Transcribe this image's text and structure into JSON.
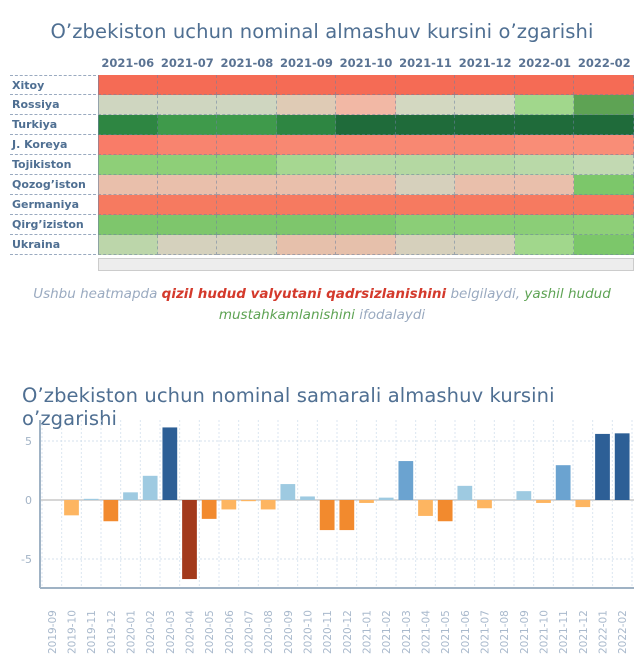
{
  "chart_data": [
    {
      "type": "heatmap",
      "title": "O’zbekiston uchun nominal almashuv kursini o’zgarishi",
      "columns": [
        "2021-06",
        "2021-07",
        "2021-08",
        "2021-09",
        "2021-10",
        "2021-11",
        "2021-12",
        "2022-01",
        "2022-02"
      ],
      "rows": [
        {
          "label": "Xitoy",
          "colors": [
            "#f56b55",
            "#f56b55",
            "#f56b55",
            "#f56b55",
            "#f56b55",
            "#f56b55",
            "#f56b55",
            "#f56b55",
            "#f56b55"
          ]
        },
        {
          "label": "Rossiya",
          "colors": [
            "#cfd6c0",
            "#cfd6c0",
            "#cfd6c0",
            "#dfcbb5",
            "#f2b8a5",
            "#d3d8c1",
            "#d3d8c1",
            "#a1d78c",
            "#5ea354"
          ]
        },
        {
          "label": "Turkiya",
          "colors": [
            "#2e8642",
            "#3f9a4b",
            "#3f9a4b",
            "#2e8642",
            "#1f6b3a",
            "#1f6b3a",
            "#1f6b3a",
            "#1f6b3a",
            "#1f6b3a"
          ]
        },
        {
          "label": "J. Koreya",
          "colors": [
            "#f97c68",
            "#f8846f",
            "#f8846f",
            "#f88872",
            "#f88872",
            "#f88872",
            "#f88872",
            "#f98d77",
            "#f98d77"
          ]
        },
        {
          "label": "Tojikiston",
          "colors": [
            "#8ecf78",
            "#8ecf78",
            "#8ecf78",
            "#a6d791",
            "#b4d8a2",
            "#b4d8a2",
            "#b4d8a2",
            "#b9d9a8",
            "#c2d9b2"
          ]
        },
        {
          "label": "Qozog’iston",
          "colors": [
            "#e9bfab",
            "#e9bfab",
            "#e9bfab",
            "#e9bfab",
            "#e9bfab",
            "#d6d0bc",
            "#e9bfab",
            "#e9bfab",
            "#7cc76a"
          ]
        },
        {
          "label": "Germaniya",
          "colors": [
            "#f67a60",
            "#f67a60",
            "#f67a60",
            "#f67a60",
            "#f67a60",
            "#f67a60",
            "#f67a60",
            "#f67a60",
            "#f67a60"
          ]
        },
        {
          "label": "Qirg’iziston",
          "colors": [
            "#7ec66c",
            "#7ec66c",
            "#7ec66c",
            "#7ec66c",
            "#80c86e",
            "#8bce77",
            "#8bce77",
            "#8bce77",
            "#8ecf78"
          ]
        },
        {
          "label": "Ukraina",
          "colors": [
            "#bcd6aa",
            "#d5d1bd",
            "#d5d1bd",
            "#e6c0ab",
            "#e6c0ab",
            "#d6d0bc",
            "#d6d0bc",
            "#a1d78c",
            "#7cc76a"
          ]
        }
      ]
    },
    {
      "type": "bar",
      "title": "O’zbekiston uchun nominal samarali almashuv kursini o’zgarishi",
      "xlabel": "",
      "ylabel": "",
      "ylim": [
        -7.5,
        7.2
      ],
      "yticks": [
        5,
        0,
        -5
      ],
      "ytick_labels": [
        "5",
        "0",
        "-5"
      ],
      "grid": true,
      "categories": [
        "2019-09",
        "2019-10",
        "2019-11",
        "2019-12",
        "2020-01",
        "2020-02",
        "2020-03",
        "2020-04",
        "2020-05",
        "2020-06",
        "2020-07",
        "2020-08",
        "2020-09",
        "2020-10",
        "2020-11",
        "2020-12",
        "2021-01",
        "2021-02",
        "2021-03",
        "2021-04",
        "2021-05",
        "2021-06",
        "2021-07",
        "2021-08",
        "2021-09",
        "2021-10",
        "2021-11",
        "2021-12",
        "2022-01",
        "2022-02"
      ],
      "values": [
        0.0,
        -1.3,
        0.1,
        -1.8,
        0.65,
        2.05,
        6.15,
        -6.7,
        -1.6,
        -0.8,
        -0.1,
        -0.8,
        1.35,
        0.3,
        -2.55,
        -2.55,
        -0.25,
        0.2,
        3.3,
        -1.35,
        -1.8,
        1.2,
        -0.7,
        0.0,
        0.75,
        -0.25,
        2.95,
        -0.6,
        5.6,
        5.65
      ],
      "color_scale": {
        "negative_strong": "#a33a1c",
        "negative": "#f28a2e",
        "negative_light": "#fdb561",
        "positive_light": "#9ecae1",
        "positive": "#6ba3d0",
        "positive_strong": "#2d5f96"
      }
    }
  ],
  "caption": {
    "part1": "Ushbu  heatmapda ",
    "red": "qizil hudud valyutani qadrsizlanishini",
    "part2": "  belgilaydi, ",
    "green1": "yashil hudud",
    "green2": "mustahkamlanishini",
    "part3": "  ifodalaydi"
  }
}
